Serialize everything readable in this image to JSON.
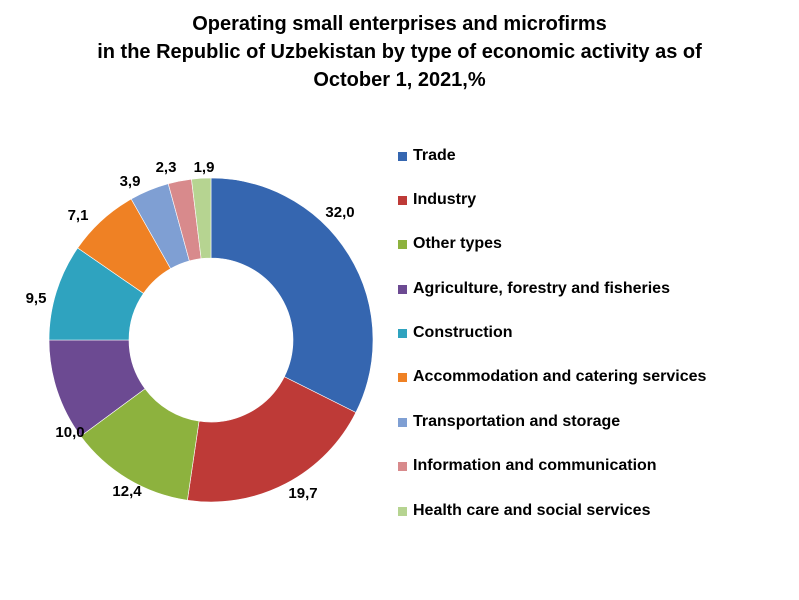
{
  "chart_data": {
    "type": "pie",
    "donut": true,
    "title_lines": [
      "Operating small enterprises and microfirms",
      "in the Republic of Uzbekistan by type of economic activity as of",
      "October 1, 2021,%"
    ],
    "categories": [
      "Trade",
      "Industry",
      "Other types",
      "Agriculture, forestry and fisheries",
      "Construction",
      "Accommodation and catering services",
      "Transportation and storage",
      "Information and communication",
      "Health care and social services"
    ],
    "values": [
      32.0,
      19.7,
      12.4,
      10.0,
      9.5,
      7.1,
      3.9,
      2.3,
      1.9
    ],
    "value_labels": [
      "32,0",
      "19,7",
      "12,4",
      "10,0",
      "9,5",
      "7,1",
      "3,9",
      "2,3",
      "1,9"
    ],
    "colors": [
      "#3566B0",
      "#BE3A37",
      "#8DB23E",
      "#6C4A92",
      "#2FA3BF",
      "#EF8124",
      "#7F9FD3",
      "#D88A8C",
      "#B6D491"
    ],
    "legend_position": "right"
  }
}
